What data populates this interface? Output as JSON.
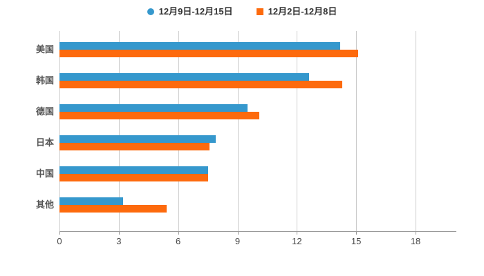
{
  "chart_data": {
    "type": "bar",
    "orientation": "horizontal",
    "title": "",
    "categories": [
      "美国",
      "韩国",
      "德国",
      "日本",
      "中国",
      "其他"
    ],
    "series": [
      {
        "name": "12月9日-12月15日",
        "color": "#3598cd",
        "marker": "circle",
        "values": [
          14.2,
          12.6,
          9.5,
          7.9,
          7.5,
          3.2
        ]
      },
      {
        "name": "12月2日-12月8日",
        "color": "#fd6a0d",
        "marker": "square",
        "values": [
          15.1,
          14.3,
          10.1,
          7.6,
          7.5,
          5.4
        ]
      }
    ],
    "x_axis": {
      "min": 0,
      "max": 18,
      "tick_interval": 3,
      "ticks": [
        "0",
        "3",
        "6",
        "9",
        "12",
        "15",
        "18"
      ]
    },
    "y_axis_label": "",
    "x_axis_label": "",
    "legend_position": "top",
    "grid": true
  },
  "colors": {
    "background": "#ffffff",
    "grid_line": "#cccccc",
    "axis_line": "#999999",
    "tick_label": "#444444",
    "category_label": "#555555",
    "legend_text": "#333333"
  }
}
